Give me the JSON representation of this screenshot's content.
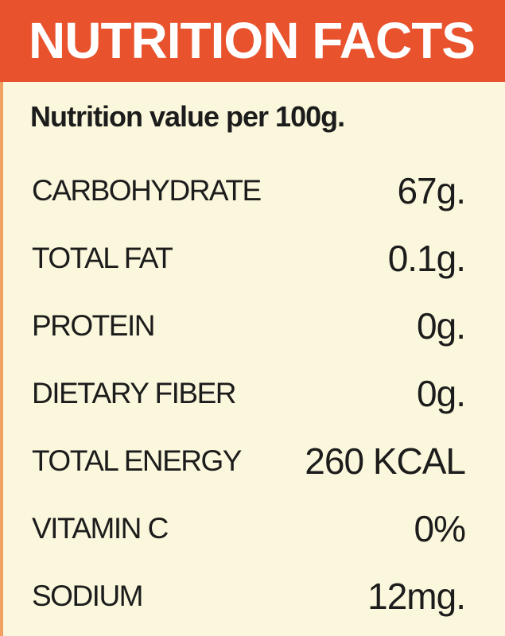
{
  "header": {
    "title": "NUTRITION FACTS"
  },
  "subtitle": "Nutrition value per 100g.",
  "table": {
    "rows": [
      [
        "CARBOHYDRATE",
        "67g."
      ],
      [
        "TOTAL FAT",
        "0.1g."
      ],
      [
        "PROTEIN",
        "0g."
      ],
      [
        "DIETARY FIBER",
        "0g."
      ],
      [
        "TOTAL ENERGY",
        "260 KCAL"
      ],
      [
        "VITAMIN C",
        "0%"
      ],
      [
        "SODIUM",
        "12mg."
      ]
    ]
  }
}
